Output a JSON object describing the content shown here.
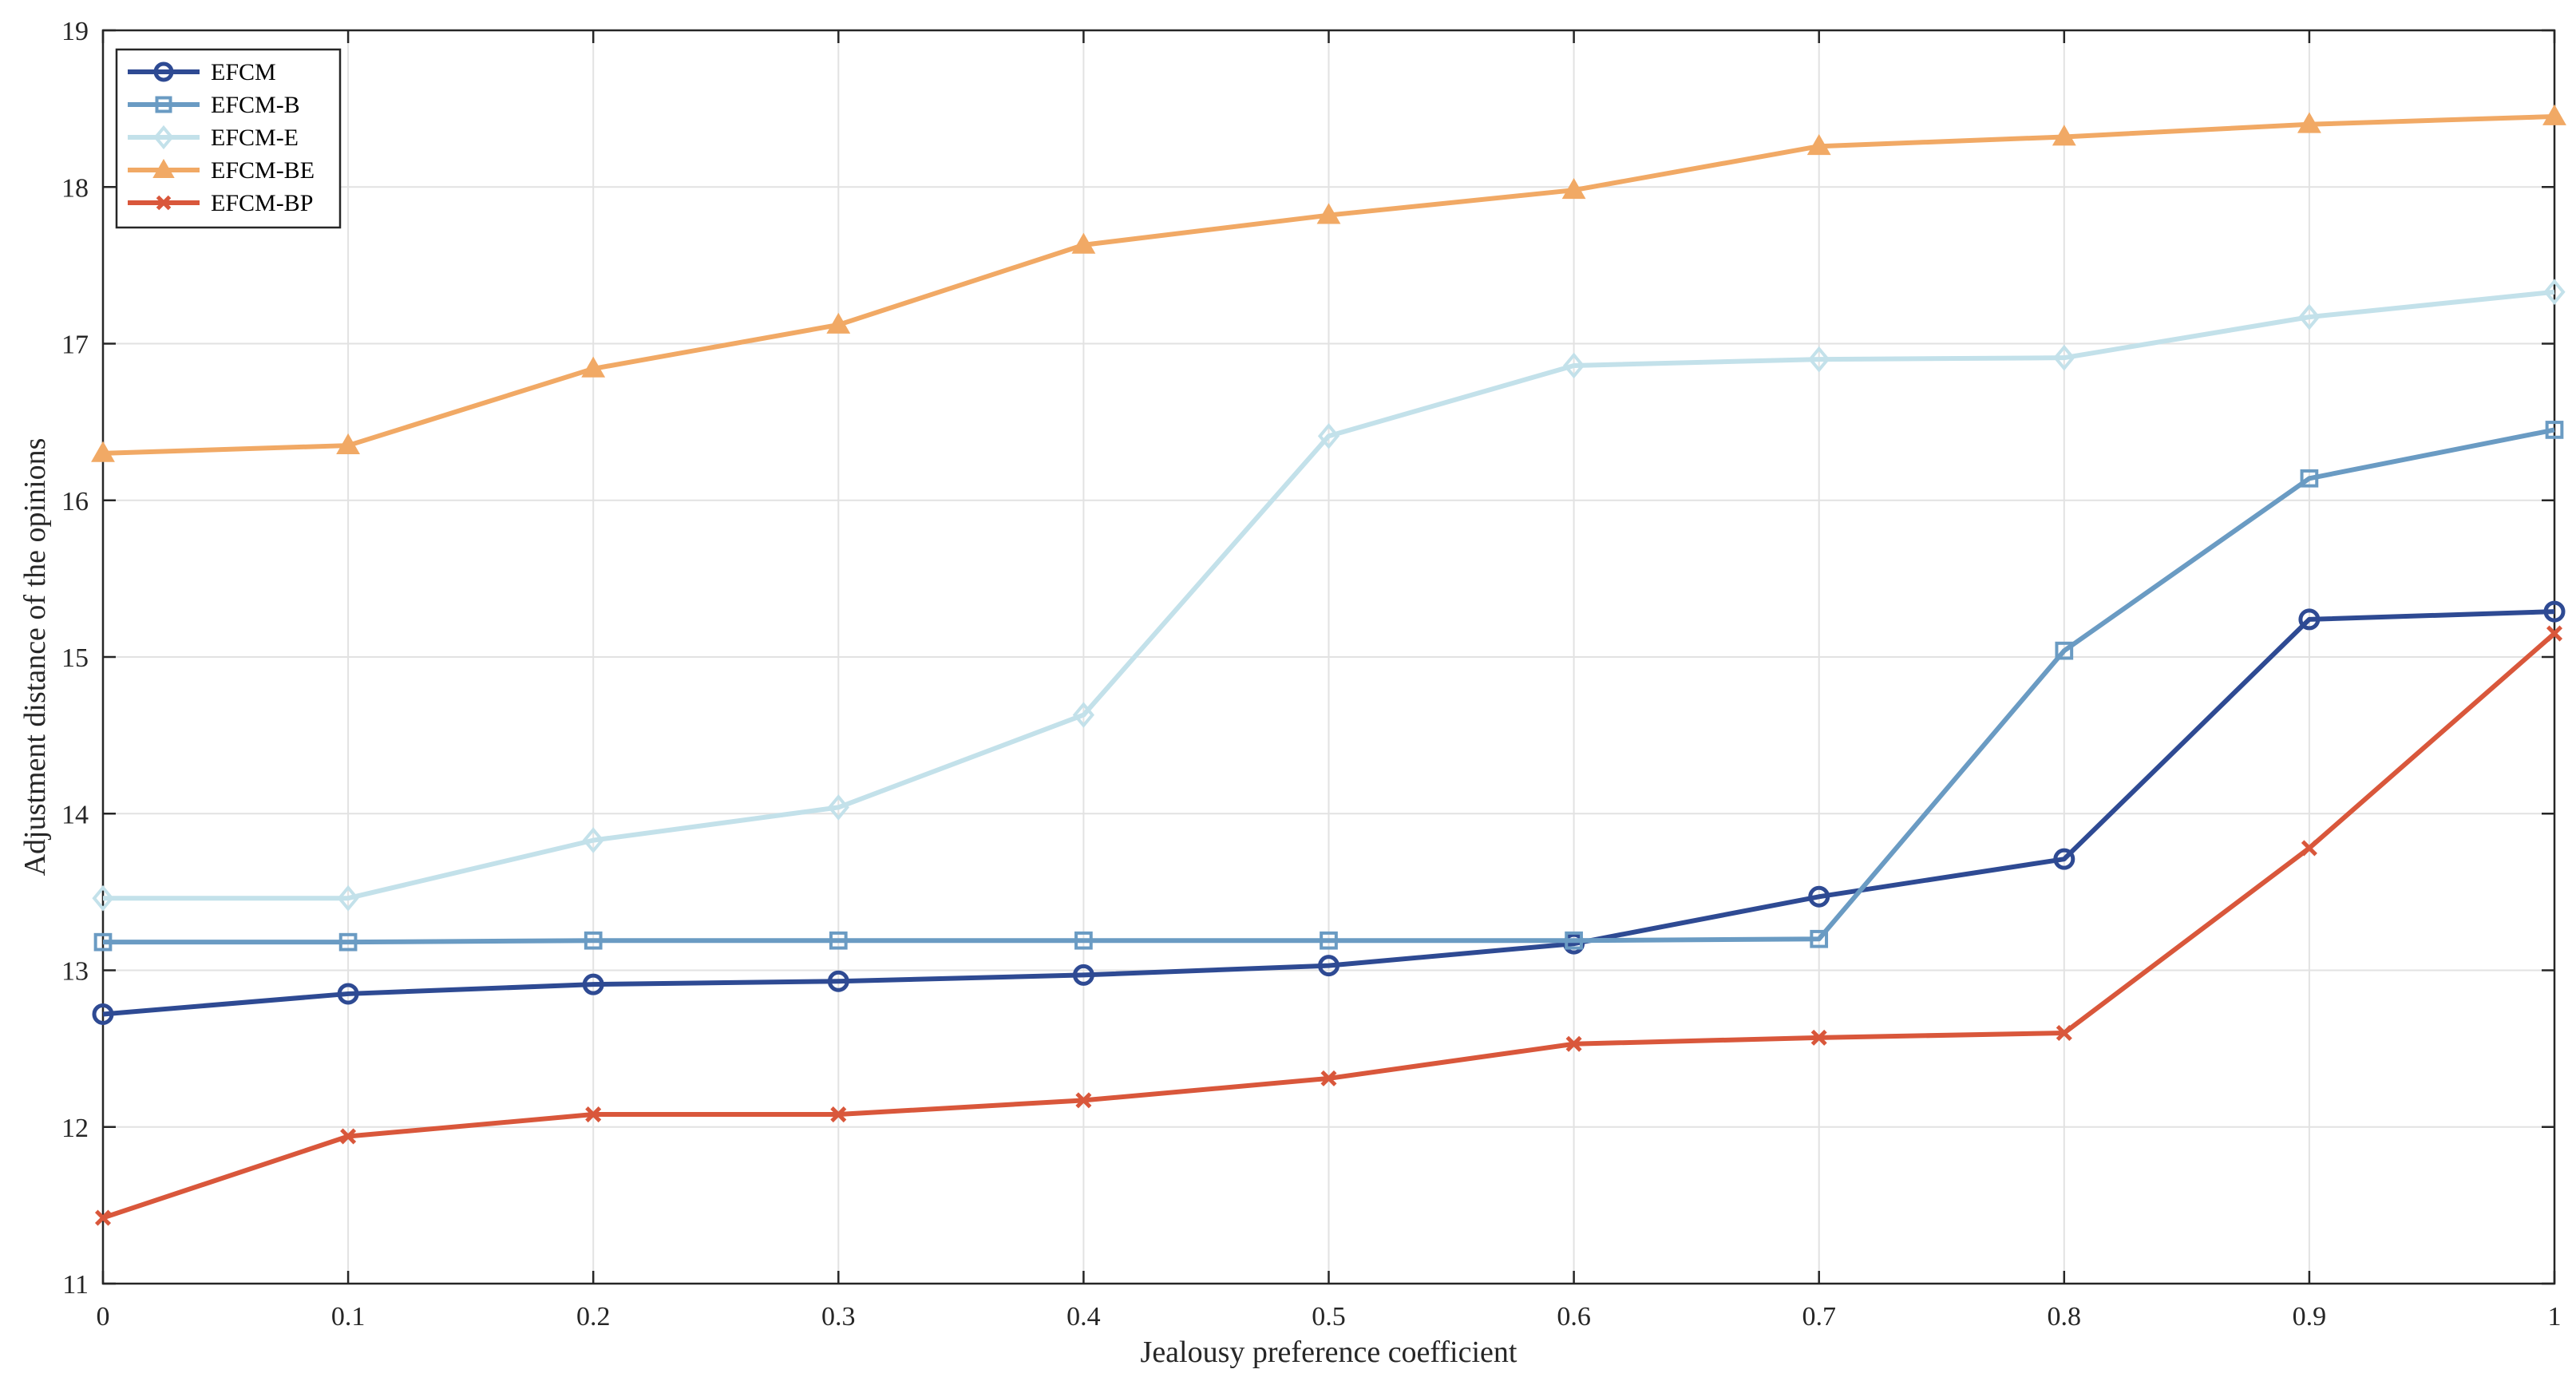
{
  "chart_data": {
    "type": "line",
    "title": "",
    "xlabel": "Jealousy preference coefficient",
    "ylabel": "Adjustment distance of the opinions",
    "x": [
      0,
      0.1,
      0.2,
      0.3,
      0.4,
      0.5,
      0.6,
      0.7,
      0.8,
      0.9,
      1
    ],
    "xticks": [
      "0",
      "0.1",
      "0.2",
      "0.3",
      "0.4",
      "0.5",
      "0.6",
      "0.7",
      "0.8",
      "0.9",
      "1"
    ],
    "yticks": [
      "11",
      "12",
      "13",
      "14",
      "15",
      "16",
      "17",
      "18",
      "19"
    ],
    "xlim": [
      0,
      1
    ],
    "ylim": [
      11,
      19
    ],
    "grid": true,
    "legend_position": "top-left",
    "series": [
      {
        "name": "EFCM",
        "color": "#2e4a93",
        "marker": "circle",
        "values": [
          12.72,
          12.85,
          12.91,
          12.93,
          12.97,
          13.03,
          13.17,
          13.47,
          13.71,
          15.24,
          15.29
        ]
      },
      {
        "name": "EFCM-B",
        "color": "#6a9bc3",
        "marker": "square",
        "values": [
          13.18,
          13.18,
          13.19,
          13.19,
          13.19,
          13.19,
          13.19,
          13.2,
          15.04,
          16.14,
          16.45
        ]
      },
      {
        "name": "EFCM-E",
        "color": "#c3e1ea",
        "marker": "diamond",
        "values": [
          13.46,
          13.46,
          13.83,
          14.04,
          14.63,
          16.41,
          16.86,
          16.9,
          16.91,
          17.17,
          17.33
        ]
      },
      {
        "name": "EFCM-BE",
        "color": "#f1a965",
        "marker": "triangle",
        "values": [
          16.3,
          16.35,
          16.84,
          17.12,
          17.63,
          17.82,
          17.98,
          18.26,
          18.32,
          18.4,
          18.45
        ]
      },
      {
        "name": "EFCM-BP",
        "color": "#d9573b",
        "marker": "x",
        "values": [
          11.42,
          11.94,
          12.08,
          12.08,
          12.17,
          12.31,
          12.53,
          12.57,
          12.6,
          13.78,
          15.15
        ]
      }
    ]
  }
}
